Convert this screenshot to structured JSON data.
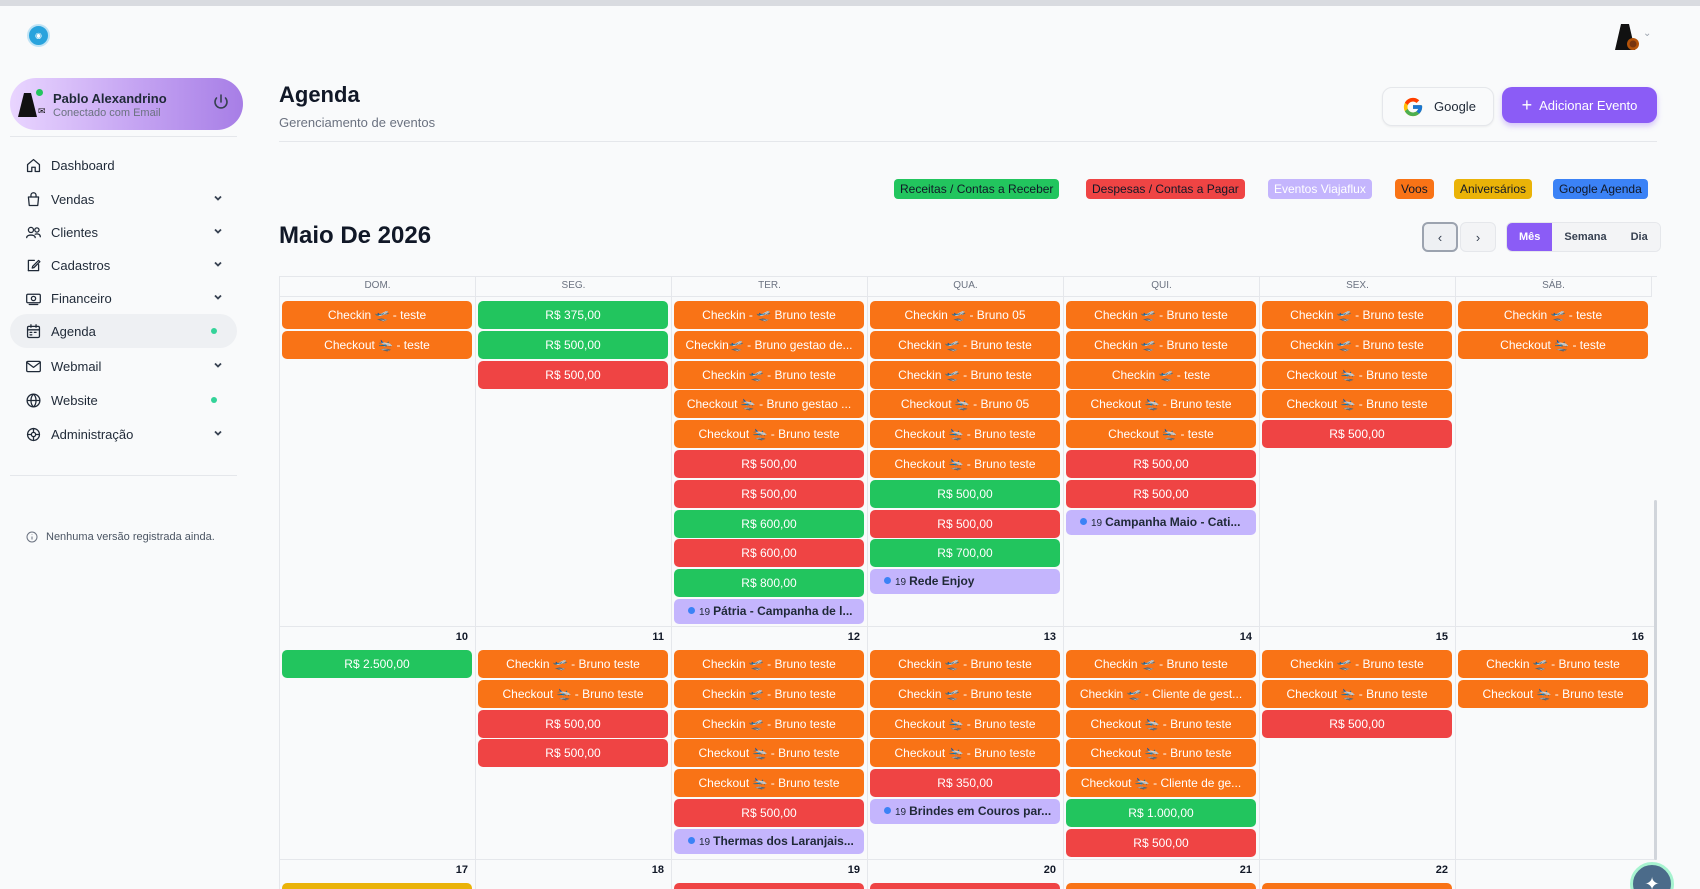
{
  "app": {
    "logo_icon": "globe-logo-icon"
  },
  "sidebar": {
    "user": {
      "name": "Pablo Alexandrino",
      "status": "Conectado com Email"
    },
    "items": [
      {
        "label": "Dashboard",
        "icon": "home-icon",
        "chevron": false,
        "dot": false,
        "active": false
      },
      {
        "label": "Vendas",
        "icon": "shopping-bag-icon",
        "chevron": true,
        "dot": false,
        "active": false
      },
      {
        "label": "Clientes",
        "icon": "users-icon",
        "chevron": true,
        "dot": false,
        "active": false
      },
      {
        "label": "Cadastros",
        "icon": "edit-icon",
        "chevron": true,
        "dot": false,
        "active": false
      },
      {
        "label": "Financeiro",
        "icon": "money-icon",
        "chevron": true,
        "dot": false,
        "active": false
      },
      {
        "label": "Agenda",
        "icon": "calendar-icon",
        "chevron": false,
        "dot": true,
        "active": true
      },
      {
        "label": "Webmail",
        "icon": "mail-icon",
        "chevron": true,
        "dot": false,
        "active": false
      },
      {
        "label": "Website",
        "icon": "globe-icon",
        "chevron": false,
        "dot": true,
        "active": false
      },
      {
        "label": "Administração",
        "icon": "settings-icon",
        "chevron": true,
        "dot": false,
        "active": false
      }
    ],
    "version_text": "Nenhuma versão registrada ainda."
  },
  "header": {
    "title": "Agenda",
    "subtitle": "Gerenciamento de eventos",
    "google_label": "Google",
    "add_label": "Adicionar Evento"
  },
  "legend": [
    {
      "label": "Receitas / Contas a Receber",
      "bg": "#22c55e",
      "fg": "#111827"
    },
    {
      "label": "Despesas / Contas a Pagar",
      "bg": "#ef4444",
      "fg": "#111827"
    },
    {
      "label": "Eventos Viajaflux",
      "bg": "#c4b5fd",
      "fg": "#ffffff"
    },
    {
      "label": "Voos",
      "bg": "#f97316",
      "fg": "#111827"
    },
    {
      "label": "Aniversários",
      "bg": "#eab308",
      "fg": "#111827"
    },
    {
      "label": "Google Agenda",
      "bg": "#3b82f6",
      "fg": "#111827"
    }
  ],
  "calendar": {
    "month_title": "Maio De 2026",
    "prev_label": "‹",
    "next_label": "›",
    "views": [
      "Mês",
      "Semana",
      "Dia"
    ],
    "active_view": "Mês",
    "weekdays": [
      "DOM.",
      "SEG.",
      "TER.",
      "QUA.",
      "QUI.",
      "SEX.",
      "SÁB."
    ],
    "weeks": [
      {
        "days": [
          {
            "num": "",
            "events": [
              {
                "t": "Checkin 🛫 - teste",
                "c": "orange"
              },
              {
                "t": "Checkout 🛬 - teste",
                "c": "orange"
              }
            ]
          },
          {
            "num": "",
            "events": [
              {
                "t": "R$ 375,00",
                "c": "green"
              },
              {
                "t": "R$ 500,00",
                "c": "green"
              },
              {
                "t": "R$ 500,00",
                "c": "red"
              }
            ]
          },
          {
            "num": "",
            "events": [
              {
                "t": "Checkin - 🛫 Bruno teste",
                "c": "orange"
              },
              {
                "t": "Checkin🛫 - Bruno gestao de...",
                "c": "orange"
              },
              {
                "t": "Checkin 🛫 - Bruno teste",
                "c": "orange"
              },
              {
                "t": "Checkout 🛬 - Bruno gestao ...",
                "c": "orange"
              },
              {
                "t": "Checkout 🛬 - Bruno teste",
                "c": "orange"
              },
              {
                "t": "R$ 500,00",
                "c": "red"
              },
              {
                "t": "R$ 500,00",
                "c": "red"
              },
              {
                "t": "R$ 600,00",
                "c": "green"
              },
              {
                "t": "R$ 600,00",
                "c": "red"
              },
              {
                "t": "R$ 800,00",
                "c": "green"
              },
              {
                "t": "Pátria - Campanha de l...",
                "c": "purple",
                "time": "19"
              }
            ]
          },
          {
            "num": "",
            "events": [
              {
                "t": "Checkin 🛫 - Bruno 05",
                "c": "orange"
              },
              {
                "t": "Checkin 🛫 - Bruno teste",
                "c": "orange"
              },
              {
                "t": "Checkin 🛫 - Bruno teste",
                "c": "orange"
              },
              {
                "t": "Checkout 🛬 - Bruno 05",
                "c": "orange"
              },
              {
                "t": "Checkout 🛬 - Bruno teste",
                "c": "orange"
              },
              {
                "t": "Checkout 🛬 - Bruno teste",
                "c": "orange"
              },
              {
                "t": "R$ 500,00",
                "c": "green"
              },
              {
                "t": "R$ 500,00",
                "c": "red"
              },
              {
                "t": "R$ 700,00",
                "c": "green"
              },
              {
                "t": "Rede Enjoy",
                "c": "purple",
                "time": "19"
              }
            ]
          },
          {
            "num": "",
            "events": [
              {
                "t": "Checkin 🛫 - Bruno teste",
                "c": "orange"
              },
              {
                "t": "Checkin 🛫 - Bruno teste",
                "c": "orange"
              },
              {
                "t": "Checkin 🛫 - teste",
                "c": "orange"
              },
              {
                "t": "Checkout 🛬 - Bruno teste",
                "c": "orange"
              },
              {
                "t": "Checkout 🛬 - teste",
                "c": "orange"
              },
              {
                "t": "R$ 500,00",
                "c": "red"
              },
              {
                "t": "R$ 500,00",
                "c": "red"
              },
              {
                "t": "Campanha Maio - Cati...",
                "c": "purple",
                "time": "19"
              }
            ]
          },
          {
            "num": "",
            "events": [
              {
                "t": "Checkin 🛫 - Bruno teste",
                "c": "orange"
              },
              {
                "t": "Checkin 🛫 - Bruno teste",
                "c": "orange"
              },
              {
                "t": "Checkout 🛬 - Bruno teste",
                "c": "orange"
              },
              {
                "t": "Checkout 🛬 - Bruno teste",
                "c": "orange"
              },
              {
                "t": "R$ 500,00",
                "c": "red"
              }
            ]
          },
          {
            "num": "",
            "events": [
              {
                "t": "Checkin 🛫 - teste",
                "c": "orange"
              },
              {
                "t": "Checkout 🛬 - teste",
                "c": "orange"
              }
            ]
          }
        ]
      },
      {
        "days": [
          {
            "num": "10",
            "events": [
              {
                "t": "R$ 2.500,00",
                "c": "green"
              }
            ]
          },
          {
            "num": "11",
            "events": [
              {
                "t": "Checkin 🛫 - Bruno teste",
                "c": "orange"
              },
              {
                "t": "Checkout 🛬 - Bruno teste",
                "c": "orange"
              },
              {
                "t": "R$ 500,00",
                "c": "red"
              },
              {
                "t": "R$ 500,00",
                "c": "red"
              }
            ]
          },
          {
            "num": "12",
            "events": [
              {
                "t": "Checkin 🛫 - Bruno teste",
                "c": "orange"
              },
              {
                "t": "Checkin 🛫 - Bruno teste",
                "c": "orange"
              },
              {
                "t": "Checkin 🛫 - Bruno teste",
                "c": "orange"
              },
              {
                "t": "Checkout 🛬 - Bruno teste",
                "c": "orange"
              },
              {
                "t": "Checkout 🛬 - Bruno teste",
                "c": "orange"
              },
              {
                "t": "R$ 500,00",
                "c": "red"
              },
              {
                "t": "Thermas dos Laranjais...",
                "c": "purple",
                "time": "19"
              }
            ]
          },
          {
            "num": "13",
            "events": [
              {
                "t": "Checkin 🛫 - Bruno teste",
                "c": "orange"
              },
              {
                "t": "Checkin 🛫 - Bruno teste",
                "c": "orange"
              },
              {
                "t": "Checkout 🛬 - Bruno teste",
                "c": "orange"
              },
              {
                "t": "Checkout 🛬 - Bruno teste",
                "c": "orange"
              },
              {
                "t": "R$ 350,00",
                "c": "red"
              },
              {
                "t": "Brindes em Couros par...",
                "c": "purple",
                "time": "19"
              }
            ]
          },
          {
            "num": "14",
            "events": [
              {
                "t": "Checkin 🛫 - Bruno teste",
                "c": "orange"
              },
              {
                "t": "Checkin 🛫 - Cliente de gest...",
                "c": "orange"
              },
              {
                "t": "Checkout 🛬 - Bruno teste",
                "c": "orange"
              },
              {
                "t": "Checkout 🛬 - Bruno teste",
                "c": "orange"
              },
              {
                "t": "Checkout 🛬 - Cliente de ge...",
                "c": "orange"
              },
              {
                "t": "R$ 1.000,00",
                "c": "green"
              },
              {
                "t": "R$ 500,00",
                "c": "red"
              }
            ]
          },
          {
            "num": "15",
            "events": [
              {
                "t": "Checkin 🛫 - Bruno teste",
                "c": "orange"
              },
              {
                "t": "Checkout 🛬 - Bruno teste",
                "c": "orange"
              },
              {
                "t": "R$ 500,00",
                "c": "red"
              }
            ]
          },
          {
            "num": "16",
            "events": [
              {
                "t": "Checkin 🛫 - Bruno teste",
                "c": "orange"
              },
              {
                "t": "Checkout 🛬 - Bruno teste",
                "c": "orange"
              }
            ]
          }
        ]
      },
      {
        "days": [
          {
            "num": "17",
            "events": [
              {
                "t": "",
                "c": "yellow"
              }
            ]
          },
          {
            "num": "18",
            "events": []
          },
          {
            "num": "19",
            "events": [
              {
                "t": "",
                "c": "red"
              }
            ]
          },
          {
            "num": "20",
            "events": [
              {
                "t": "",
                "c": "red"
              }
            ]
          },
          {
            "num": "21",
            "events": [
              {
                "t": "",
                "c": "orange"
              }
            ]
          },
          {
            "num": "22",
            "events": [
              {
                "t": "",
                "c": "orange"
              }
            ]
          },
          {
            "num": "",
            "events": []
          }
        ]
      }
    ]
  }
}
